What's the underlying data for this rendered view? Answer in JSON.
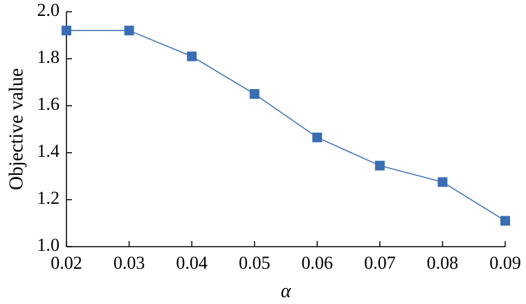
{
  "chart_data": {
    "type": "line",
    "title": "",
    "xlabel": "α",
    "ylabel": "Objective value",
    "x": [
      0.02,
      0.03,
      0.04,
      0.05,
      0.06,
      0.07,
      0.08,
      0.09
    ],
    "x_tick_labels": [
      "0.02",
      "0.03",
      "0.04",
      "0.05",
      "0.06",
      "0.07",
      "0.08",
      "0.09"
    ],
    "y_tick_values": [
      1.0,
      1.2,
      1.4,
      1.6,
      1.8,
      2.0
    ],
    "y_tick_labels": [
      "1.0",
      "1.2",
      "1.4",
      "1.6",
      "1.8",
      "2.0"
    ],
    "xlim": [
      0.02,
      0.09
    ],
    "ylim": [
      1.0,
      2.0
    ],
    "grid": false,
    "legend": "none",
    "series": [
      {
        "values": [
          1.92,
          1.92,
          1.81,
          1.65,
          1.465,
          1.345,
          1.275,
          1.11
        ],
        "color": "#3a6db1",
        "marker": "square"
      }
    ]
  }
}
